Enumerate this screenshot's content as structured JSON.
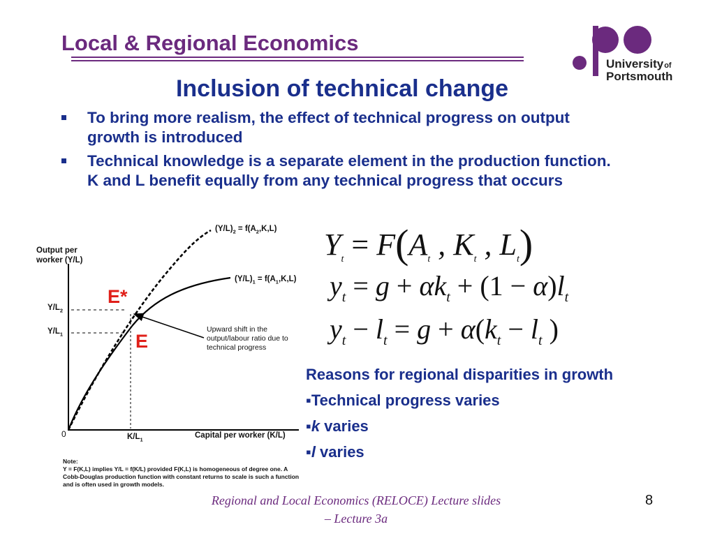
{
  "header": {
    "title": "Local & Regional Economics"
  },
  "logo": {
    "line1": "University",
    "line2": "of",
    "line3": "Portsmouth"
  },
  "slide": {
    "title": "Inclusion of technical change",
    "bullets": [
      "To bring more realism, the effect of technical progress on output growth is introduced",
      "Technical knowledge is a separate element in the production function. K and L benefit equally from any technical progress that occurs"
    ]
  },
  "diagram": {
    "y_axis_label": "Output per worker (Y/L)",
    "x_axis_label": "Capital per worker (K/L)",
    "origin": "0",
    "curve_upper_label": "(Y/L)2 = f(A2,K,L)",
    "curve_lower_label": "(Y/L)1 = f(A1,K,L)",
    "y_tick_upper": "Y/L2",
    "y_tick_lower": "Y/L1",
    "x_tick": "K/L1",
    "point_e_star": "E*",
    "point_e": "E",
    "annotation": "Upward shift in the output/labour ratio due to technical progress",
    "note_label": "Note:",
    "note_text": "Y = F(K,L) implies Y/L = f(K/L) provided F(K,L) is homogeneous of degree one. A Cobb-Douglas production function with constant returns to scale is such a function and is often used in growth models.",
    "colors": {
      "point_label": "#e0201a",
      "curve": "#000000"
    }
  },
  "equations": [
    "Y_t = F(A_t, K_t, L_t)",
    "y_t = g + αk_t + (1 − α)l_t",
    "y_t − l_t = g + α(k_t − l_t)"
  ],
  "reasons": {
    "heading": "Reasons for regional disparities in growth",
    "items": [
      {
        "prefix": "▪",
        "text": "Technical progress varies"
      },
      {
        "prefix": "▪",
        "symbol": "k",
        "text": " varies"
      },
      {
        "prefix": "▪",
        "symbol": "l",
        "text": " varies"
      }
    ]
  },
  "footer": {
    "text": "Regional and Local Economics (RELOCE) Lecture slides – Lecture 3a"
  },
  "page_number": "8"
}
